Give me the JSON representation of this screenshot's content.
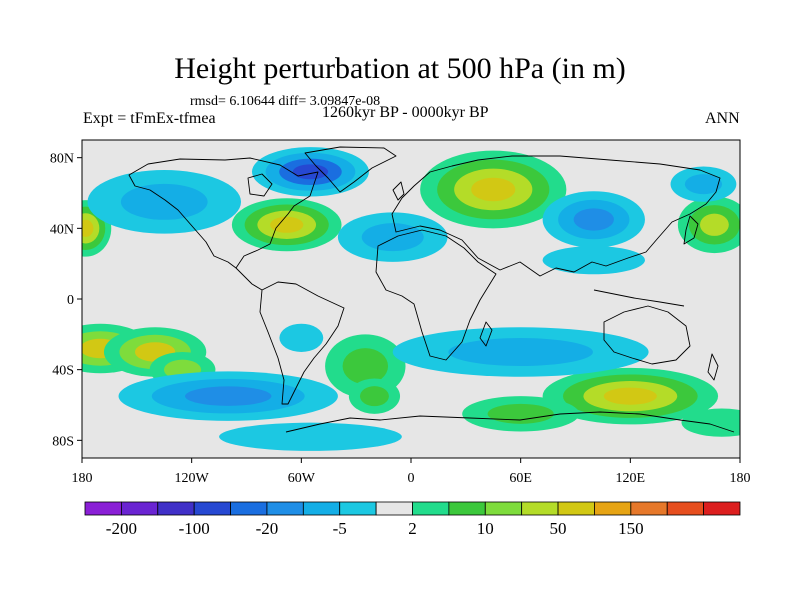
{
  "header": {
    "title": "Height perturbation at 500 hPa (in m)",
    "stats": "rmsd= 6.10644 diff= 3.09847e-08",
    "experiment": "Expt = tFmEx-tfmea",
    "period": "1260kyr BP - 0000kyr BP",
    "season": "ANN"
  },
  "axes": {
    "lat_ticks": [
      {
        "label": "80N",
        "value": 80
      },
      {
        "label": "40N",
        "value": 40
      },
      {
        "label": "0",
        "value": 0
      },
      {
        "label": "40S",
        "value": -40
      },
      {
        "label": "80S",
        "value": -80
      }
    ],
    "lon_ticks": [
      {
        "label": "180",
        "value": -180
      },
      {
        "label": "120W",
        "value": -120
      },
      {
        "label": "60W",
        "value": -60
      },
      {
        "label": "0",
        "value": 0
      },
      {
        "label": "60E",
        "value": 60
      },
      {
        "label": "120E",
        "value": 120
      },
      {
        "label": "180",
        "value": 180
      }
    ],
    "lon_range": [
      -180,
      180
    ],
    "lat_range": [
      -90,
      90
    ]
  },
  "colorbar": {
    "colors": [
      "#8a1fd6",
      "#6a24d2",
      "#4030c8",
      "#2648d2",
      "#1a6ee0",
      "#1f8ee6",
      "#14aee6",
      "#1cc8e2",
      "#e6e6e6",
      "#22dc8c",
      "#3cc83c",
      "#7edc3c",
      "#b4dc28",
      "#d2c814",
      "#e6a414",
      "#e6782a",
      "#e64e1e",
      "#dc1e1e"
    ],
    "labels": [
      {
        "text": "-200",
        "index": 1
      },
      {
        "text": "-100",
        "index": 3
      },
      {
        "text": "-20",
        "index": 5
      },
      {
        "text": "-5",
        "index": 7
      },
      {
        "text": "2",
        "index": 9
      },
      {
        "text": "10",
        "index": 11
      },
      {
        "text": "50",
        "index": 13
      },
      {
        "text": "150",
        "index": 15
      }
    ]
  },
  "field": {
    "background_level": 8,
    "anomalies": [
      {
        "lon": -170,
        "lat": -28,
        "rl": 28,
        "rt": 14,
        "levels": [
          9,
          11,
          13
        ]
      },
      {
        "lon": -140,
        "lat": -30,
        "rl": 28,
        "rt": 14,
        "levels": [
          9,
          11,
          13
        ]
      },
      {
        "lon": -125,
        "lat": -40,
        "rl": 18,
        "rt": 10,
        "levels": [
          9,
          11
        ]
      },
      {
        "lon": -25,
        "lat": -38,
        "rl": 22,
        "rt": 18,
        "levels": [
          9,
          10
        ]
      },
      {
        "lon": -20,
        "lat": -55,
        "rl": 14,
        "rt": 10,
        "levels": [
          9,
          10
        ]
      },
      {
        "lon": 45,
        "lat": 62,
        "rl": 40,
        "rt": 22,
        "levels": [
          9,
          10,
          12,
          13
        ]
      },
      {
        "lon": -68,
        "lat": 42,
        "rl": 30,
        "rt": 15,
        "levels": [
          9,
          10,
          12,
          13
        ]
      },
      {
        "lon": -178,
        "lat": 40,
        "rl": 14,
        "rt": 16,
        "levels": [
          9,
          10,
          12,
          13
        ]
      },
      {
        "lon": 166,
        "lat": 42,
        "rl": 20,
        "rt": 16,
        "levels": [
          9,
          10,
          12
        ]
      },
      {
        "lon": 120,
        "lat": -55,
        "rl": 48,
        "rt": 16,
        "levels": [
          9,
          10,
          12,
          13
        ]
      },
      {
        "lon": 60,
        "lat": -65,
        "rl": 32,
        "rt": 10,
        "levels": [
          9,
          10
        ]
      },
      {
        "lon": 170,
        "lat": -70,
        "rl": 22,
        "rt": 8,
        "levels": [
          9
        ]
      },
      {
        "lon": -135,
        "lat": 55,
        "rl": 42,
        "rt": 18,
        "levels": [
          7,
          6
        ]
      },
      {
        "lon": -55,
        "lat": 72,
        "rl": 32,
        "rt": 14,
        "levels": [
          7,
          6,
          4,
          3
        ]
      },
      {
        "lon": -10,
        "lat": 35,
        "rl": 30,
        "rt": 14,
        "levels": [
          7,
          6
        ]
      },
      {
        "lon": 100,
        "lat": 45,
        "rl": 28,
        "rt": 16,
        "levels": [
          7,
          6,
          5
        ]
      },
      {
        "lon": 160,
        "lat": 65,
        "rl": 18,
        "rt": 10,
        "levels": [
          7,
          6
        ]
      },
      {
        "lon": 100,
        "lat": 22,
        "rl": 28,
        "rt": 8,
        "levels": [
          7
        ]
      },
      {
        "lon": -100,
        "lat": -55,
        "rl": 60,
        "rt": 14,
        "levels": [
          7,
          6,
          5
        ]
      },
      {
        "lon": 60,
        "lat": -30,
        "rl": 70,
        "rt": 14,
        "levels": [
          7,
          6
        ]
      },
      {
        "lon": -60,
        "lat": -22,
        "rl": 12,
        "rt": 8,
        "levels": [
          7
        ]
      },
      {
        "lon": -55,
        "lat": -78,
        "rl": 50,
        "rt": 8,
        "levels": [
          7
        ]
      }
    ]
  }
}
